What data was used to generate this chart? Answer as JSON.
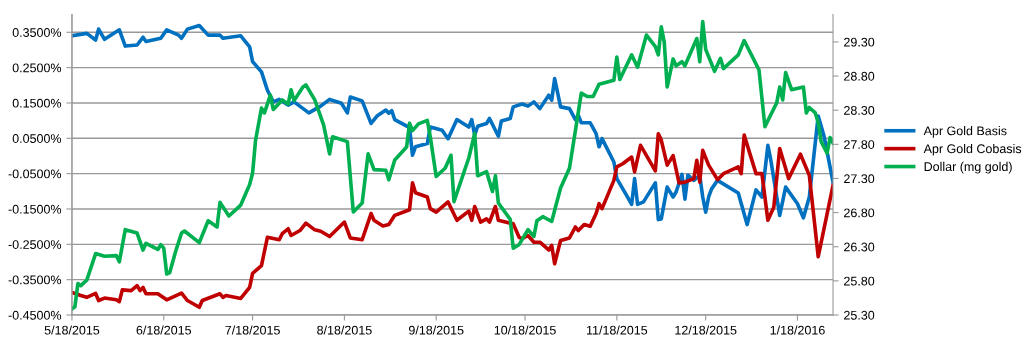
{
  "chart_data": {
    "type": "line",
    "xlim": [
      "2015-05-18",
      "2016-01-30"
    ],
    "xticks": [
      {
        "value": "2015-05-18",
        "label": "5/18/2015"
      },
      {
        "value": "2015-06-18",
        "label": "6/18/2015"
      },
      {
        "value": "2015-07-18",
        "label": "7/18/2015"
      },
      {
        "value": "2015-08-18",
        "label": "8/18/2015"
      },
      {
        "value": "2015-09-18",
        "label": "9/18/2015"
      },
      {
        "value": "2015-10-18",
        "label": "10/18/2015"
      },
      {
        "value": "2015-11-18",
        "label": "11/18/2015"
      },
      {
        "value": "2015-12-18",
        "label": "12/18/2015"
      },
      {
        "value": "2016-01-18",
        "label": "1/18/2016"
      }
    ],
    "ylim": [
      -0.45,
      0.4
    ],
    "yticks": [
      {
        "value": -0.45,
        "label": "-0.4500%"
      },
      {
        "value": -0.35,
        "label": "-0.3500%"
      },
      {
        "value": -0.25,
        "label": "-0.2500%"
      },
      {
        "value": -0.15,
        "label": "-0.1500%"
      },
      {
        "value": -0.05,
        "label": "-0.0500%"
      },
      {
        "value": 0.05,
        "label": "0.0500%"
      },
      {
        "value": 0.15,
        "label": "0.1500%"
      },
      {
        "value": 0.25,
        "label": "0.2500%"
      },
      {
        "value": 0.35,
        "label": "0.3500%"
      }
    ],
    "y2lim": [
      25.3,
      29.7
    ],
    "y2ticks": [
      {
        "value": 25.3,
        "label": "25.30"
      },
      {
        "value": 25.8,
        "label": "25.80"
      },
      {
        "value": 26.3,
        "label": "26.30"
      },
      {
        "value": 26.8,
        "label": "26.80"
      },
      {
        "value": 27.3,
        "label": "27.30"
      },
      {
        "value": 27.8,
        "label": "27.80"
      },
      {
        "value": 28.3,
        "label": "28.30"
      },
      {
        "value": 28.8,
        "label": "28.80"
      },
      {
        "value": 29.3,
        "label": "29.30"
      }
    ],
    "grid": "y",
    "legend": "right",
    "marker": "none",
    "line_style": "solid",
    "series": [
      {
        "name": "Apr Gold Basis",
        "color": "#0070c0",
        "x": [
          "2015-05-18",
          "2015-05-23",
          "2015-05-26",
          "2015-05-27",
          "2015-05-29",
          "2015-06-03",
          "2015-06-05",
          "2015-06-09",
          "2015-06-11",
          "2015-06-12",
          "2015-06-17",
          "2015-06-19",
          "2015-06-23",
          "2015-06-24",
          "2015-06-26",
          "2015-06-30",
          "2015-07-03",
          "2015-07-07",
          "2015-07-08",
          "2015-07-14",
          "2015-07-17",
          "2015-07-18",
          "2015-07-21",
          "2015-07-23",
          "2015-07-25",
          "2015-07-27",
          "2015-07-30",
          "2015-08-01",
          "2015-08-06",
          "2015-08-10",
          "2015-08-13",
          "2015-08-17",
          "2015-08-19",
          "2015-08-20",
          "2015-08-24",
          "2015-08-27",
          "2015-08-29",
          "2015-09-01",
          "2015-09-02",
          "2015-09-03",
          "2015-09-04",
          "2015-09-09",
          "2015-09-10",
          "2015-09-11",
          "2015-09-15",
          "2015-09-16",
          "2015-09-20",
          "2015-09-22",
          "2015-09-25",
          "2015-09-29",
          "2015-09-30",
          "2015-10-01",
          "2015-10-02",
          "2015-10-05",
          "2015-10-06",
          "2015-10-09",
          "2015-10-10",
          "2015-10-13",
          "2015-10-14",
          "2015-10-17",
          "2015-10-19",
          "2015-10-21",
          "2015-10-23",
          "2015-10-26",
          "2015-10-27",
          "2015-10-28",
          "2015-10-30",
          "2015-11-02",
          "2015-11-04",
          "2015-11-05",
          "2015-11-06",
          "2015-11-09",
          "2015-11-11",
          "2015-11-12",
          "2015-11-13",
          "2015-11-17",
          "2015-11-18",
          "2015-11-21",
          "2015-11-23",
          "2015-11-24",
          "2015-11-25",
          "2015-11-27",
          "2015-12-01",
          "2015-12-02",
          "2015-12-03",
          "2015-12-05",
          "2015-12-07",
          "2015-12-08",
          "2015-12-10",
          "2015-12-11",
          "2015-12-12",
          "2015-12-14",
          "2015-12-16",
          "2015-12-17",
          "2015-12-18",
          "2015-12-19",
          "2015-12-20",
          "2015-12-22",
          "2015-12-29",
          "2016-01-01",
          "2016-01-04",
          "2016-01-06",
          "2016-01-08",
          "2016-01-09",
          "2016-01-12",
          "2016-01-14",
          "2016-01-18",
          "2016-01-20",
          "2016-01-22",
          "2016-01-25",
          "2016-01-27",
          "2016-01-30"
        ],
        "values": [
          0.34,
          0.347,
          0.328,
          0.359,
          0.33,
          0.357,
          0.311,
          0.314,
          0.336,
          0.324,
          0.333,
          0.357,
          0.342,
          0.333,
          0.359,
          0.369,
          0.342,
          0.342,
          0.333,
          0.34,
          0.309,
          0.267,
          0.238,
          0.186,
          0.153,
          0.16,
          0.144,
          0.153,
          0.122,
          0.141,
          0.16,
          0.149,
          0.122,
          0.167,
          0.156,
          0.092,
          0.113,
          0.13,
          0.121,
          0.128,
          0.103,
          0.08,
          0.002,
          0.026,
          0.035,
          0.082,
          0.073,
          0.049,
          0.103,
          0.082,
          0.103,
          0.059,
          0.084,
          0.092,
          0.106,
          0.056,
          0.099,
          0.106,
          0.139,
          0.147,
          0.141,
          0.153,
          0.134,
          0.172,
          0.158,
          0.219,
          0.139,
          0.134,
          0.103,
          0.115,
          0.094,
          0.094,
          0.063,
          0.026,
          0.049,
          -0.017,
          -0.064,
          -0.107,
          -0.137,
          -0.064,
          -0.137,
          -0.13,
          -0.076,
          -0.18,
          -0.178,
          -0.088,
          -0.116,
          -0.102,
          -0.052,
          -0.122,
          -0.054,
          -0.069,
          -0.055,
          -0.116,
          -0.159,
          -0.116,
          -0.093,
          -0.069,
          -0.105,
          -0.194,
          -0.096,
          -0.116,
          0.03,
          -0.012,
          -0.168,
          -0.088,
          -0.135,
          -0.175,
          -0.116,
          0.113,
          0.055,
          -0.074
        ]
      },
      {
        "name": "Apr Gold Cobasis",
        "color": "#c00000",
        "x": [
          "2015-05-18",
          "2015-05-21",
          "2015-05-23",
          "2015-05-26",
          "2015-05-27",
          "2015-05-29",
          "2015-06-02",
          "2015-06-03",
          "2015-06-04",
          "2015-06-07",
          "2015-06-09",
          "2015-06-10",
          "2015-06-11",
          "2015-06-12",
          "2015-06-16",
          "2015-06-19",
          "2015-06-24",
          "2015-06-26",
          "2015-06-30",
          "2015-07-01",
          "2015-07-07",
          "2015-07-08",
          "2015-07-09",
          "2015-07-14",
          "2015-07-17",
          "2015-07-18",
          "2015-07-21",
          "2015-07-23",
          "2015-07-27",
          "2015-07-28",
          "2015-07-30",
          "2015-07-31",
          "2015-08-03",
          "2015-08-05",
          "2015-08-08",
          "2015-08-10",
          "2015-08-13",
          "2015-08-18",
          "2015-08-20",
          "2015-08-24",
          "2015-08-27",
          "2015-08-28",
          "2015-08-31",
          "2015-09-02",
          "2015-09-04",
          "2015-09-09",
          "2015-09-10",
          "2015-09-11",
          "2015-09-15",
          "2015-09-16",
          "2015-09-18",
          "2015-09-22",
          "2015-09-25",
          "2015-09-29",
          "2015-09-30",
          "2015-10-01",
          "2015-10-03",
          "2015-10-05",
          "2015-10-06",
          "2015-10-08",
          "2015-10-09",
          "2015-10-14",
          "2015-10-16",
          "2015-10-17",
          "2015-10-19",
          "2015-10-21",
          "2015-10-23",
          "2015-10-26",
          "2015-10-27",
          "2015-10-28",
          "2015-10-30",
          "2015-11-02",
          "2015-11-04",
          "2015-11-05",
          "2015-11-07",
          "2015-11-09",
          "2015-11-11",
          "2015-11-12",
          "2015-11-13",
          "2015-11-17",
          "2015-11-18",
          "2015-11-20",
          "2015-11-23",
          "2015-11-24",
          "2015-11-26",
          "2015-12-01",
          "2015-12-02",
          "2015-12-03",
          "2015-12-05",
          "2015-12-07",
          "2015-12-09",
          "2015-12-11",
          "2015-12-14",
          "2015-12-15",
          "2015-12-16",
          "2015-12-17",
          "2015-12-19",
          "2015-12-22",
          "2015-12-24",
          "2015-12-29",
          "2015-12-30",
          "2015-12-31",
          "2016-01-04",
          "2016-01-06",
          "2016-01-08",
          "2016-01-10",
          "2016-01-12",
          "2016-01-15",
          "2016-01-19",
          "2016-01-22",
          "2016-01-25",
          "2016-01-28",
          "2016-01-30"
        ],
        "values": [
          -0.386,
          -0.395,
          -0.4,
          -0.389,
          -0.409,
          -0.402,
          -0.407,
          -0.412,
          -0.379,
          -0.381,
          -0.367,
          -0.381,
          -0.372,
          -0.39,
          -0.39,
          -0.407,
          -0.388,
          -0.409,
          -0.428,
          -0.409,
          -0.39,
          -0.4,
          -0.395,
          -0.403,
          -0.372,
          -0.332,
          -0.31,
          -0.23,
          -0.237,
          -0.22,
          -0.206,
          -0.225,
          -0.211,
          -0.19,
          -0.209,
          -0.213,
          -0.228,
          -0.187,
          -0.232,
          -0.237,
          -0.163,
          -0.182,
          -0.198,
          -0.194,
          -0.168,
          -0.152,
          -0.076,
          -0.104,
          -0.116,
          -0.149,
          -0.159,
          -0.13,
          -0.182,
          -0.156,
          -0.182,
          -0.143,
          -0.187,
          -0.178,
          -0.187,
          -0.143,
          -0.182,
          -0.192,
          -0.23,
          -0.234,
          -0.225,
          -0.244,
          -0.244,
          -0.266,
          -0.253,
          -0.305,
          -0.239,
          -0.232,
          -0.201,
          -0.211,
          -0.194,
          -0.199,
          -0.163,
          -0.135,
          -0.149,
          -0.069,
          -0.031,
          -0.022,
          -0.003,
          -0.045,
          0.03,
          -0.042,
          0.063,
          0.045,
          -0.026,
          0.001,
          -0.076,
          -0.074,
          -0.064,
          -0.012,
          -0.074,
          0.016,
          -0.026,
          -0.067,
          -0.05,
          -0.031,
          -0.05,
          0.059,
          -0.05,
          -0.05,
          -0.182,
          -0.145,
          0.021,
          -0.064,
          0.005,
          -0.055,
          -0.285,
          -0.164,
          -0.083
        ]
      },
      {
        "name": "Dollar (mg gold)",
        "color": "#00b050",
        "axis": "y2",
        "x": [
          "2015-05-18",
          "2015-05-19",
          "2015-05-20",
          "2015-05-21",
          "2015-05-23",
          "2015-05-26",
          "2015-05-29",
          "2015-06-02",
          "2015-06-03",
          "2015-06-05",
          "2015-06-09",
          "2015-06-11",
          "2015-06-12",
          "2015-06-16",
          "2015-06-17",
          "2015-06-18",
          "2015-06-19",
          "2015-06-20",
          "2015-06-22",
          "2015-06-24",
          "2015-06-25",
          "2015-06-30",
          "2015-07-03",
          "2015-07-06",
          "2015-07-07",
          "2015-07-10",
          "2015-07-14",
          "2015-07-17",
          "2015-07-18",
          "2015-07-19",
          "2015-07-21",
          "2015-07-22",
          "2015-07-24",
          "2015-07-25",
          "2015-07-28",
          "2015-07-30",
          "2015-07-31",
          "2015-08-01",
          "2015-08-04",
          "2015-08-05",
          "2015-08-08",
          "2015-08-11",
          "2015-08-13",
          "2015-08-14",
          "2015-08-19",
          "2015-08-21",
          "2015-08-24",
          "2015-08-26",
          "2015-08-28",
          "2015-09-01",
          "2015-09-02",
          "2015-09-04",
          "2015-09-08",
          "2015-09-09",
          "2015-09-10",
          "2015-09-12",
          "2015-09-15",
          "2015-09-16",
          "2015-09-18",
          "2015-09-21",
          "2015-09-23",
          "2015-09-24",
          "2015-09-29",
          "2015-10-01",
          "2015-10-02",
          "2015-10-05",
          "2015-10-07",
          "2015-10-08",
          "2015-10-09",
          "2015-10-13",
          "2015-10-14",
          "2015-10-16",
          "2015-10-19",
          "2015-10-21",
          "2015-10-22",
          "2015-10-24",
          "2015-10-27",
          "2015-10-30",
          "2015-11-02",
          "2015-11-06",
          "2015-11-08",
          "2015-11-10",
          "2015-11-12",
          "2015-11-17",
          "2015-11-18",
          "2015-11-19",
          "2015-11-23",
          "2015-11-25",
          "2015-11-28",
          "2015-12-01",
          "2015-12-02",
          "2015-12-03",
          "2015-12-04",
          "2015-12-05",
          "2015-12-07",
          "2015-12-08",
          "2015-12-10",
          "2015-12-11",
          "2015-12-15",
          "2015-12-16",
          "2015-12-17",
          "2015-12-18",
          "2015-12-21",
          "2015-12-23",
          "2015-12-24",
          "2015-12-29",
          "2015-12-31",
          "2016-01-05",
          "2016-01-07",
          "2016-01-11",
          "2016-01-12",
          "2016-01-13",
          "2016-01-14",
          "2016-01-16",
          "2016-01-20",
          "2016-01-21",
          "2016-01-22",
          "2016-01-24",
          "2016-01-25",
          "2016-01-26",
          "2016-01-28",
          "2016-01-29",
          "2016-01-30"
        ],
        "values": [
          25.39,
          25.42,
          25.76,
          25.73,
          25.81,
          26.2,
          26.16,
          26.17,
          26.08,
          26.55,
          26.5,
          26.25,
          26.35,
          26.26,
          26.33,
          26.28,
          25.9,
          25.92,
          26.23,
          26.5,
          26.53,
          26.36,
          26.68,
          26.59,
          26.95,
          26.75,
          26.91,
          27.21,
          27.38,
          27.86,
          28.33,
          28.26,
          28.52,
          28.31,
          28.45,
          28.39,
          28.6,
          28.44,
          28.64,
          28.67,
          28.45,
          28.08,
          27.66,
          27.91,
          27.84,
          26.81,
          26.94,
          27.66,
          27.43,
          27.42,
          27.28,
          27.57,
          27.76,
          28.11,
          28.0,
          28.1,
          28.15,
          27.91,
          27.33,
          27.45,
          27.64,
          26.96,
          27.6,
          27.96,
          27.34,
          27.4,
          27.11,
          27.34,
          26.94,
          26.7,
          26.28,
          26.33,
          26.55,
          26.45,
          26.68,
          26.74,
          26.67,
          27.16,
          27.45,
          28.55,
          28.5,
          28.5,
          28.68,
          28.74,
          29.08,
          28.75,
          29.11,
          28.93,
          29.4,
          29.23,
          29.11,
          29.52,
          29.3,
          28.64,
          29.05,
          28.95,
          29.01,
          28.95,
          29.35,
          29.01,
          29.6,
          29.19,
          28.87,
          29.06,
          28.91,
          29.11,
          29.32,
          28.89,
          28.06,
          28.41,
          28.64,
          28.45,
          28.85,
          28.6,
          28.64,
          28.26,
          28.34,
          28.26,
          28.12,
          27.84,
          27.67,
          27.9,
          27.82
        ]
      }
    ]
  }
}
